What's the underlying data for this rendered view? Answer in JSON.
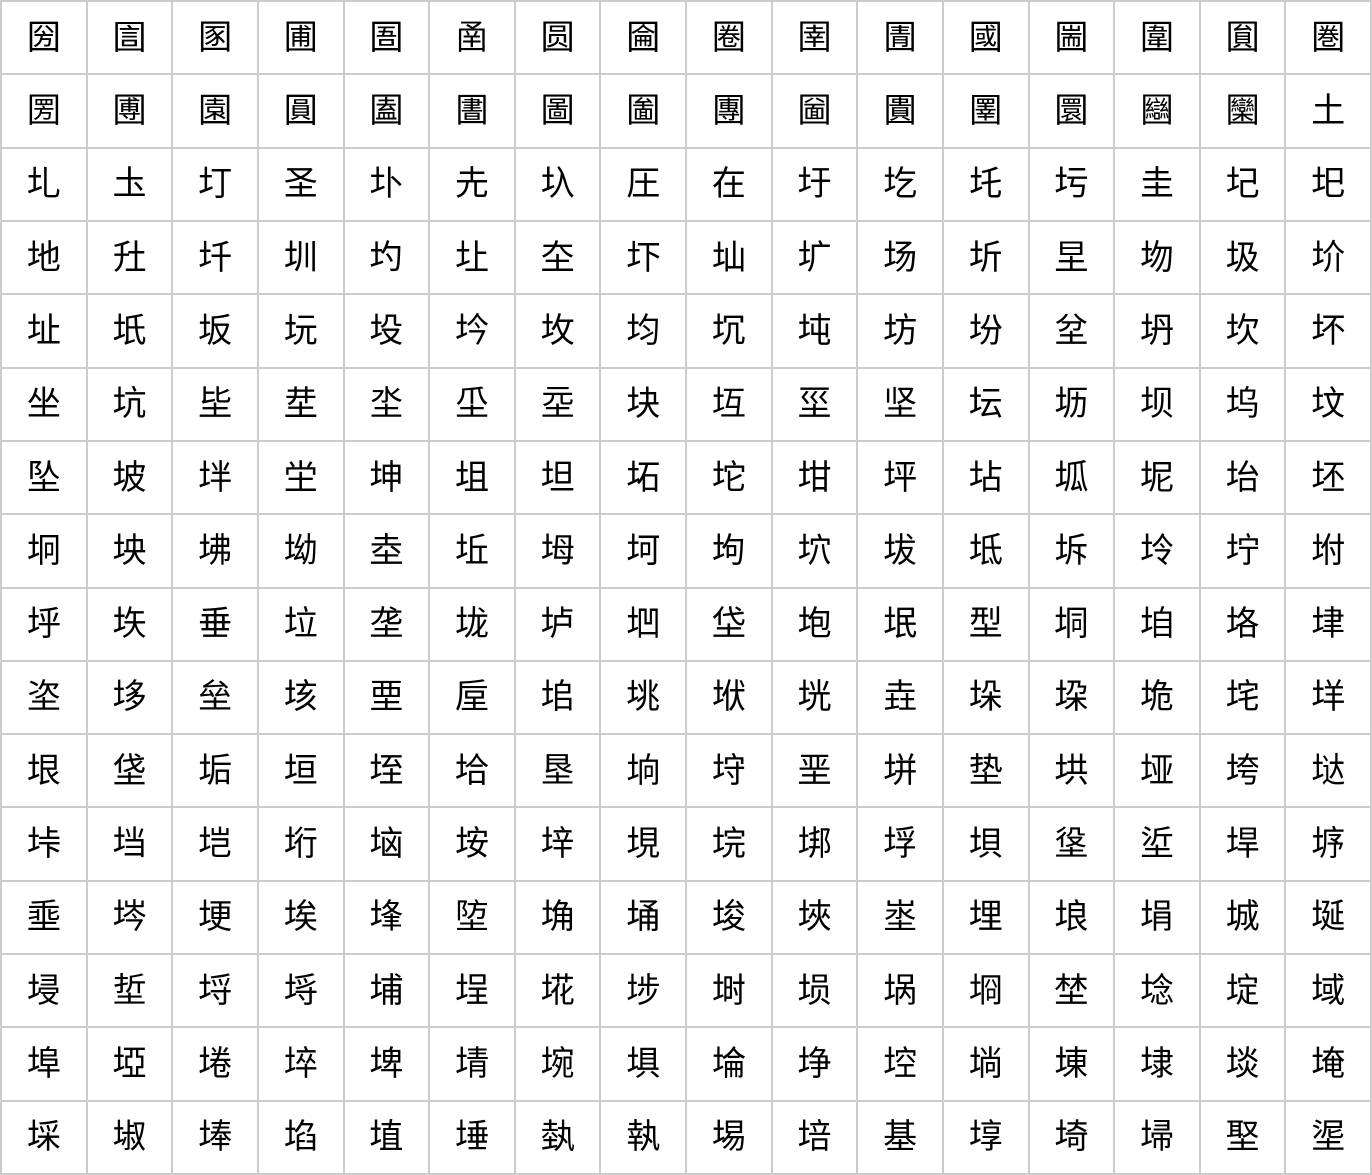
{
  "grid": {
    "rows": [
      [
        "圀",
        "圁",
        "圂",
        "圃",
        "圄",
        "圅",
        "圆",
        "圇",
        "圈",
        "圉",
        "圊",
        "國",
        "圌",
        "圍",
        "圎",
        "圏"
      ],
      [
        "圐",
        "圑",
        "園",
        "圓",
        "圔",
        "圕",
        "圖",
        "圗",
        "團",
        "圙",
        "圚",
        "圛",
        "圜",
        "圝",
        "圞",
        "土"
      ],
      [
        "圠",
        "圡",
        "圢",
        "圣",
        "圤",
        "圥",
        "圦",
        "圧",
        "在",
        "圩",
        "圪",
        "圫",
        "圬",
        "圭",
        "圮",
        "圯"
      ],
      [
        "地",
        "圱",
        "圲",
        "圳",
        "圴",
        "圵",
        "圶",
        "圷",
        "圸",
        "圹",
        "场",
        "圻",
        "圼",
        "圽",
        "圾",
        "圿"
      ],
      [
        "址",
        "坁",
        "坂",
        "坃",
        "坄",
        "坅",
        "坆",
        "均",
        "坈",
        "坉",
        "坊",
        "坋",
        "坌",
        "坍",
        "坎",
        "坏"
      ],
      [
        "坐",
        "坑",
        "坒",
        "坓",
        "坔",
        "坕",
        "坖",
        "块",
        "坘",
        "坙",
        "坚",
        "坛",
        "坜",
        "坝",
        "坞",
        "坟"
      ],
      [
        "坠",
        "坡",
        "坢",
        "坣",
        "坤",
        "坥",
        "坦",
        "坧",
        "坨",
        "坩",
        "坪",
        "坫",
        "坬",
        "坭",
        "坮",
        "坯"
      ],
      [
        "坰",
        "坱",
        "坲",
        "坳",
        "坴",
        "坵",
        "坶",
        "坷",
        "坸",
        "坹",
        "坺",
        "坻",
        "坼",
        "坽",
        "坾",
        "坿"
      ],
      [
        "垀",
        "垁",
        "垂",
        "垃",
        "垄",
        "垅",
        "垆",
        "垇",
        "垈",
        "垉",
        "垊",
        "型",
        "垌",
        "垍",
        "垎",
        "垏"
      ],
      [
        "垐",
        "垑",
        "垒",
        "垓",
        "垔",
        "垕",
        "垖",
        "垗",
        "垘",
        "垙",
        "垚",
        "垛",
        "垜",
        "垝",
        "垞",
        "垟"
      ],
      [
        "垠",
        "垡",
        "垢",
        "垣",
        "垤",
        "垥",
        "垦",
        "垧",
        "垨",
        "垩",
        "垪",
        "垫",
        "垬",
        "垭",
        "垮",
        "垯"
      ],
      [
        "垰",
        "垱",
        "垲",
        "垳",
        "垴",
        "垵",
        "垶",
        "垷",
        "垸",
        "垹",
        "垺",
        "垻",
        "垼",
        "垽",
        "垾",
        "垿"
      ],
      [
        "埀",
        "埁",
        "埂",
        "埃",
        "埄",
        "埅",
        "埆",
        "埇",
        "埈",
        "埉",
        "埊",
        "埋",
        "埌",
        "埍",
        "城",
        "埏"
      ],
      [
        "埐",
        "埑",
        "埒",
        "埓",
        "埔",
        "埕",
        "埖",
        "埗",
        "埘",
        "埙",
        "埚",
        "埛",
        "埜",
        "埝",
        "埞",
        "域"
      ],
      [
        "埠",
        "埡",
        "埢",
        "埣",
        "埤",
        "埥",
        "埦",
        "埧",
        "埨",
        "埩",
        "埪",
        "埫",
        "埬",
        "埭",
        "埮",
        "埯"
      ],
      [
        "埰",
        "埱",
        "埲",
        "埳",
        "埴",
        "埵",
        "埶",
        "執",
        "埸",
        "培",
        "基",
        "埻",
        "埼",
        "埽",
        "埾",
        "埿"
      ]
    ]
  }
}
